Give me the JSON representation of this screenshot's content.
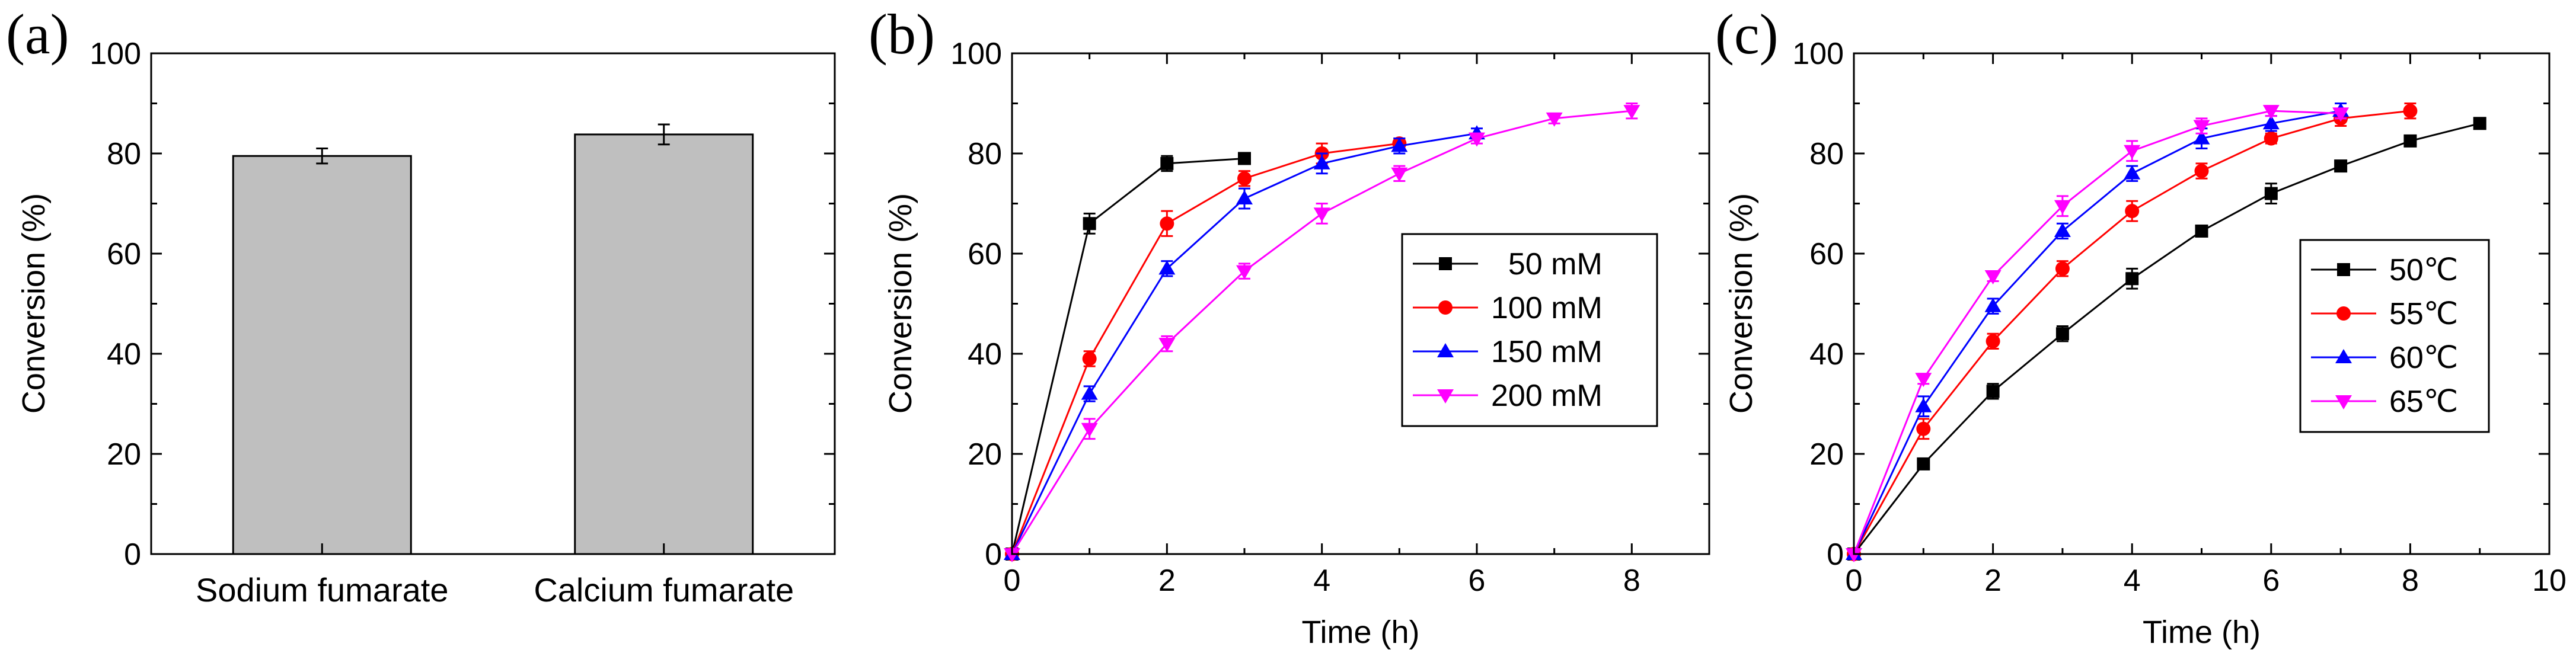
{
  "figure": {
    "background": "#ffffff",
    "axis_color": "#000000"
  },
  "chart_data": [
    {
      "type": "bar",
      "panel_label": "(a)",
      "title": "",
      "xlabel": "",
      "ylabel": "Conversion (%)",
      "categories": [
        "Sodium fumarate",
        "Calcium fumarate"
      ],
      "values": [
        79.5,
        83.8
      ],
      "errors": [
        1.5,
        2.0
      ],
      "bar_color": "#bfbfbf",
      "ylim": [
        0,
        100
      ],
      "yticks": [
        0,
        20,
        40,
        60,
        80,
        100
      ],
      "ytick_labels": [
        "0",
        "20",
        "40",
        "60",
        "80",
        "100"
      ]
    },
    {
      "type": "line",
      "panel_label": "(b)",
      "title": "",
      "xlabel": "Time (h)",
      "ylabel": "Conversion (%)",
      "xlim": [
        0,
        9
      ],
      "ylim": [
        0,
        100
      ],
      "xticks": [
        0,
        2,
        4,
        6,
        8
      ],
      "xtick_labels": [
        "0",
        "2",
        "4",
        "6",
        "8"
      ],
      "yticks": [
        0,
        20,
        40,
        60,
        80,
        100
      ],
      "ytick_labels": [
        "0",
        "20",
        "40",
        "60",
        "80",
        "100"
      ],
      "legend_position": "center-right",
      "series": [
        {
          "name": "  50 mM",
          "color": "#000000",
          "marker": "square",
          "x": [
            0,
            1,
            2,
            3
          ],
          "values": [
            0,
            66,
            78,
            79
          ],
          "errors": [
            0,
            2,
            1.5,
            1
          ]
        },
        {
          "name": "100 mM",
          "color": "#ff0000",
          "marker": "circle",
          "x": [
            0,
            1,
            2,
            3,
            4,
            5
          ],
          "values": [
            0,
            39,
            66,
            75,
            80,
            82
          ],
          "errors": [
            0,
            1.5,
            2.5,
            1.5,
            2,
            1
          ]
        },
        {
          "name": "150 mM",
          "color": "#0000ff",
          "marker": "triangle-up",
          "x": [
            0,
            1,
            2,
            3,
            4,
            5,
            6
          ],
          "values": [
            0,
            32,
            57,
            71,
            78,
            81.5,
            84
          ],
          "errors": [
            0,
            1.5,
            1.5,
            2,
            2,
            1.5,
            1
          ]
        },
        {
          "name": "200 mM",
          "color": "#ff00ff",
          "marker": "triangle-down",
          "x": [
            0,
            1,
            2,
            3,
            4,
            5,
            6,
            7,
            8
          ],
          "values": [
            0,
            25,
            42,
            56.5,
            68,
            76,
            83,
            87,
            88.5
          ],
          "errors": [
            0,
            2,
            1.5,
            1.5,
            2,
            1.5,
            1,
            1,
            1.5
          ]
        }
      ]
    },
    {
      "type": "line",
      "panel_label": "(c)",
      "title": "",
      "xlabel": "Time (h)",
      "ylabel": "Conversion (%)",
      "xlim": [
        0,
        10
      ],
      "ylim": [
        0,
        100
      ],
      "xticks": [
        0,
        2,
        4,
        6,
        8,
        10
      ],
      "xtick_labels": [
        "0",
        "2",
        "4",
        "6",
        "8",
        "10"
      ],
      "yticks": [
        0,
        20,
        40,
        60,
        80,
        100
      ],
      "ytick_labels": [
        "0",
        "20",
        "40",
        "60",
        "80",
        "100"
      ],
      "legend_position": "center-right",
      "series": [
        {
          "name": "50℃",
          "color": "#000000",
          "marker": "square",
          "x": [
            0,
            1,
            2,
            3,
            4,
            5,
            6,
            7,
            8,
            9
          ],
          "values": [
            0,
            18,
            32.5,
            44,
            55,
            64.5,
            72,
            77.5,
            82.5,
            86
          ],
          "errors": [
            0,
            1,
            1.5,
            1.5,
            2,
            1,
            2,
            1,
            1,
            1
          ]
        },
        {
          "name": "55℃",
          "color": "#ff0000",
          "marker": "circle",
          "x": [
            0,
            1,
            2,
            3,
            4,
            5,
            6,
            7,
            8
          ],
          "values": [
            0,
            25,
            42.5,
            57,
            68.5,
            76.5,
            83,
            87,
            88.5
          ],
          "errors": [
            0,
            2,
            1.5,
            1.5,
            2,
            1.5,
            1,
            1.5,
            1.5
          ]
        },
        {
          "name": "60℃",
          "color": "#0000ff",
          "marker": "triangle-up",
          "x": [
            0,
            1,
            2,
            3,
            4,
            5,
            6,
            7
          ],
          "values": [
            0,
            29.5,
            49.5,
            64.5,
            76,
            83,
            86,
            88.5
          ],
          "errors": [
            0,
            2,
            1.5,
            1.5,
            1.5,
            2,
            1.5,
            1.5
          ]
        },
        {
          "name": "65℃",
          "color": "#ff00ff",
          "marker": "triangle-down",
          "x": [
            0,
            1,
            2,
            3,
            4,
            5,
            6,
            7
          ],
          "values": [
            0,
            35,
            55.5,
            69.5,
            80.5,
            85.5,
            88.5,
            88
          ],
          "errors": [
            0,
            1,
            1,
            2,
            2,
            1.5,
            1,
            1
          ]
        }
      ]
    }
  ]
}
